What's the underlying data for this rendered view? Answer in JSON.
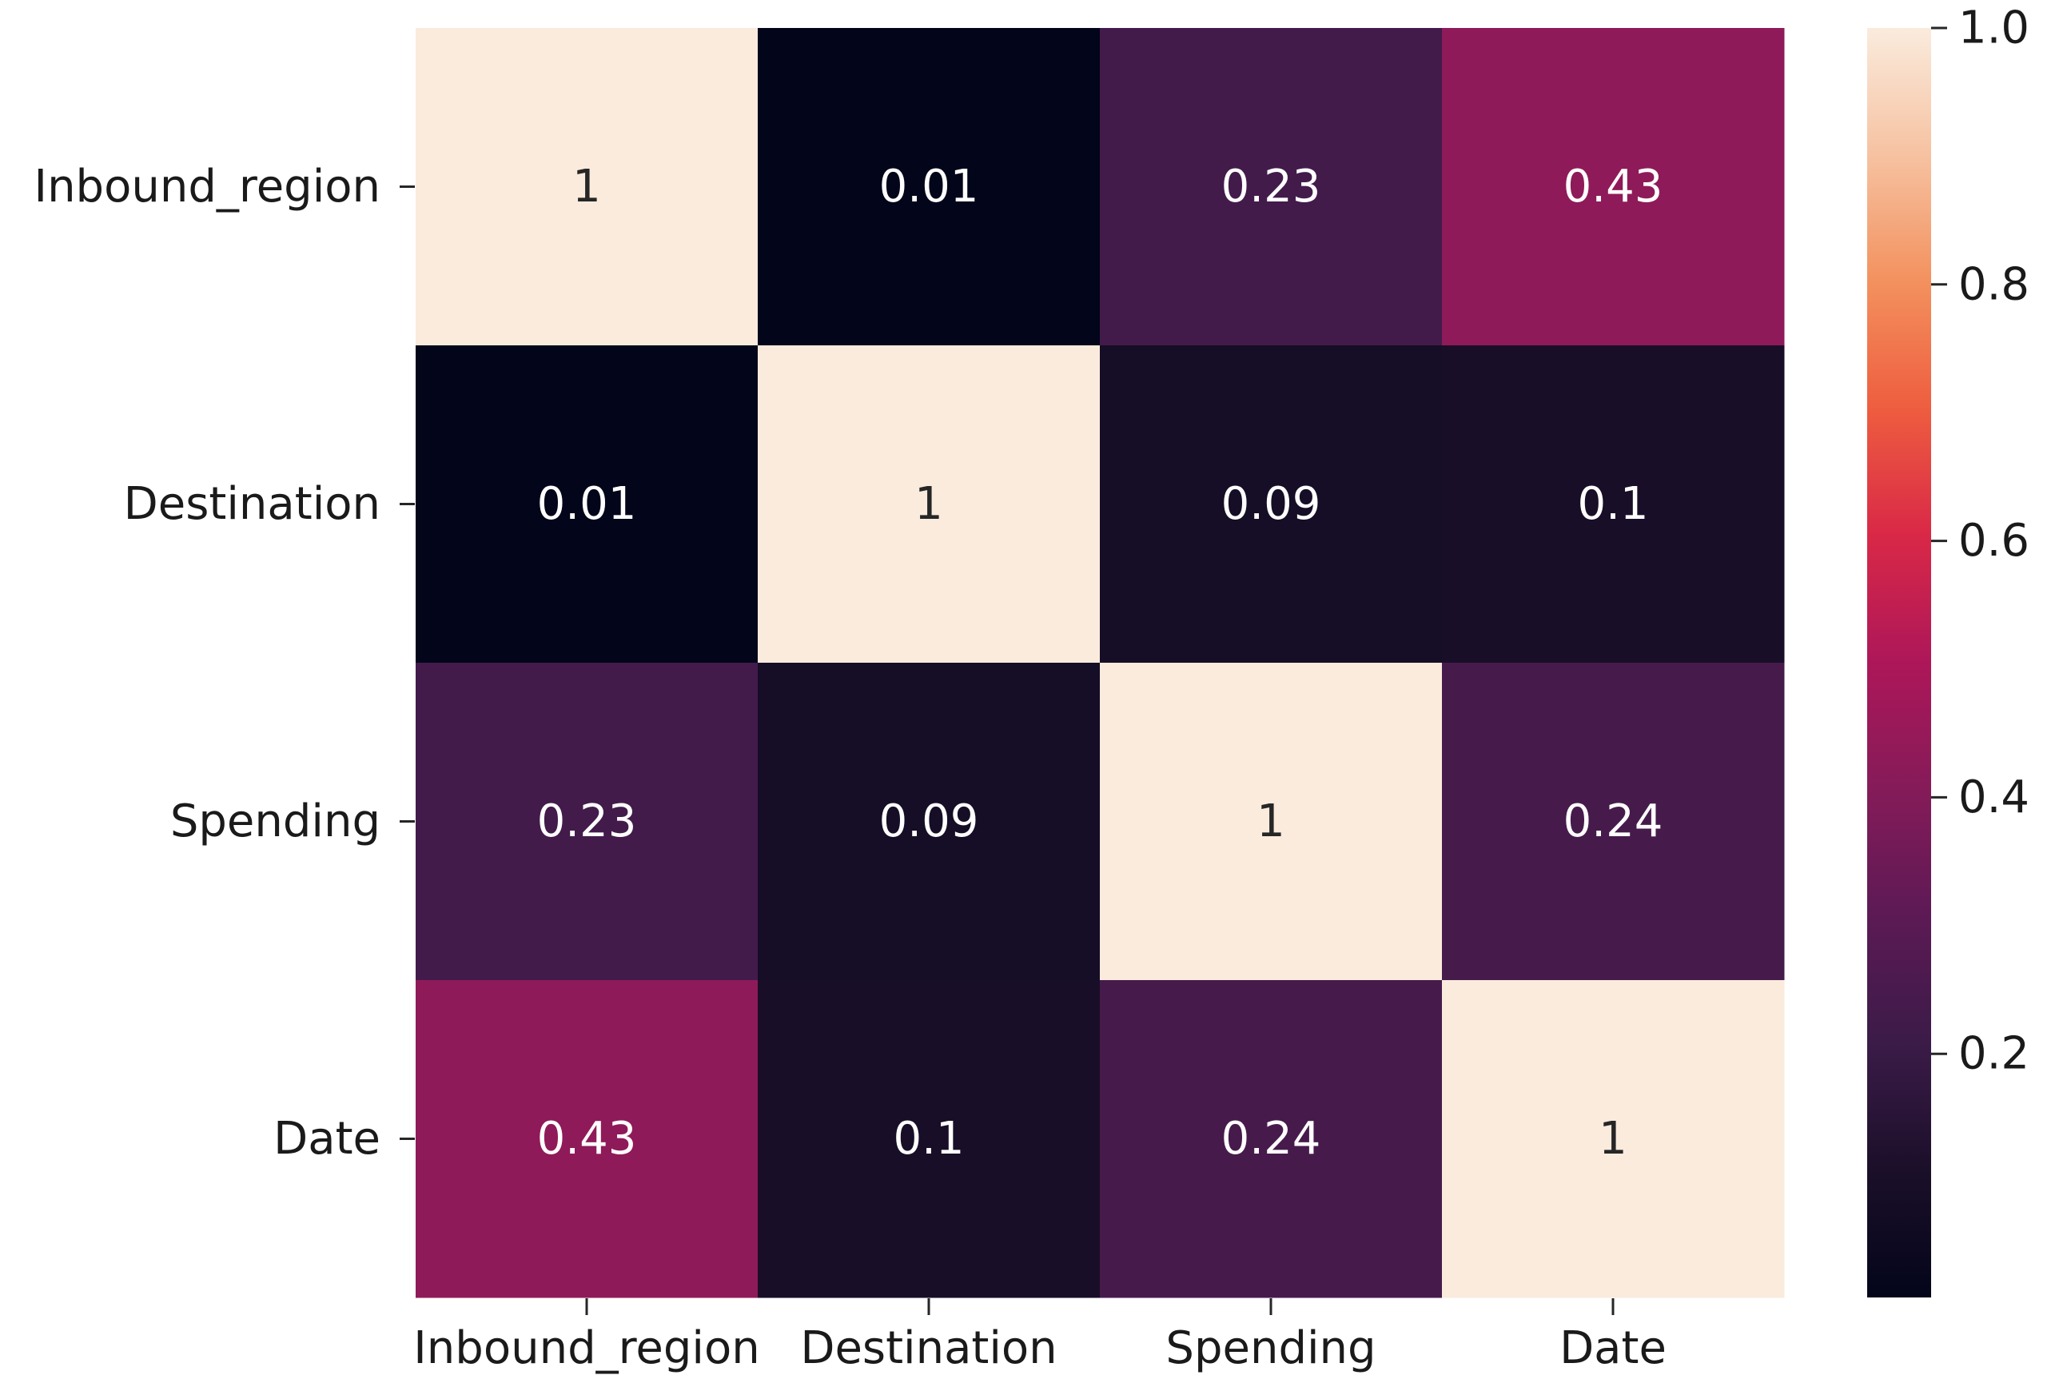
{
  "chart_data": {
    "type": "heatmap",
    "title": "",
    "xlabel": "",
    "ylabel": "",
    "rows": [
      "Inbound_region",
      "Destination",
      "Spending",
      "Date"
    ],
    "columns": [
      "Inbound_region",
      "Destination",
      "Spending",
      "Date"
    ],
    "values": [
      [
        1,
        0.01,
        0.23,
        0.43
      ],
      [
        0.01,
        1,
        0.09,
        0.1
      ],
      [
        0.23,
        0.09,
        1,
        0.24
      ],
      [
        0.43,
        0.1,
        0.24,
        1
      ]
    ],
    "cell_labels": [
      [
        "1",
        "0.01",
        "0.23",
        "0.43"
      ],
      [
        "0.01",
        "1",
        "0.09",
        "0.1"
      ],
      [
        "0.23",
        "0.09",
        "1",
        "0.24"
      ],
      [
        "0.43",
        "0.1",
        "0.24",
        "1"
      ]
    ],
    "colormap": "rocket",
    "colorbar": {
      "vmin": 0.01,
      "vmax": 1.0,
      "ticks": [
        0.2,
        0.4,
        0.6,
        0.8,
        1.0
      ],
      "tick_labels": [
        "0.2",
        "0.4",
        "0.6",
        "0.8",
        "1.0"
      ]
    }
  }
}
